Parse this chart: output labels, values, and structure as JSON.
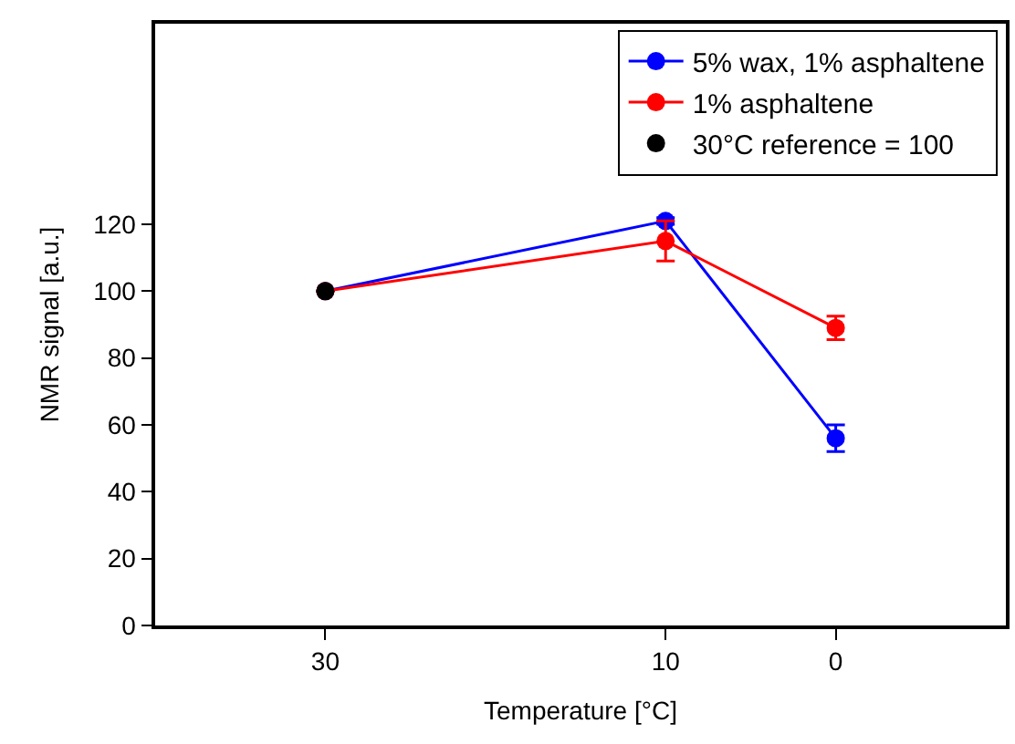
{
  "chart_data": {
    "type": "line",
    "xlabel": "Temperature [°C]",
    "ylabel": "NMR signal [a.u.]",
    "xlim": [
      40,
      -10
    ],
    "xticks": [
      30,
      10,
      0
    ],
    "ylim": [
      0,
      180
    ],
    "yticks": [
      0,
      20,
      40,
      60,
      80,
      100,
      120
    ],
    "legend": "top right",
    "marker": "circle",
    "series": [
      {
        "name": "5% wax, 1% asphaltene",
        "color": "#0000ff",
        "x": [
          30,
          10,
          0
        ],
        "values": [
          100,
          121,
          56
        ],
        "errors": [
          null,
          1,
          4
        ]
      },
      {
        "name": "1% asphaltene",
        "color": "#ff0000",
        "x": [
          30,
          10,
          0
        ],
        "values": [
          100,
          115,
          89
        ],
        "errors": [
          null,
          6,
          3.5
        ]
      },
      {
        "name": "30°C reference = 100",
        "type": "scatter",
        "color": "#000000",
        "x": [
          30
        ],
        "values": [
          100
        ]
      }
    ]
  }
}
